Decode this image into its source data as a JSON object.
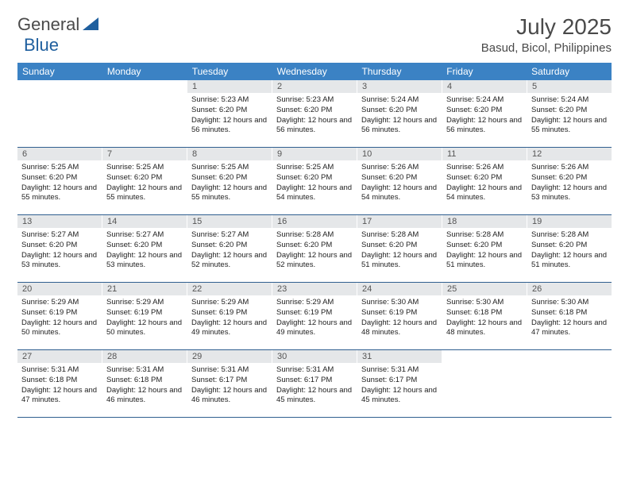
{
  "brand": {
    "part1": "General",
    "part2": "Blue"
  },
  "colors": {
    "header_bg": "#3b82c4",
    "header_text": "#ffffff",
    "daynum_bg": "#e5e7e9",
    "week_divider": "#2f5f8f",
    "text": "#4a4a4a",
    "logo_triangle": "#1f5f9e"
  },
  "title": "July 2025",
  "location": "Basud, Bicol, Philippines",
  "weekdays": [
    "Sunday",
    "Monday",
    "Tuesday",
    "Wednesday",
    "Thursday",
    "Friday",
    "Saturday"
  ],
  "table": {
    "columns": 7,
    "rows": 5
  },
  "weeks": [
    [
      {
        "empty": true
      },
      {
        "empty": true
      },
      {
        "day": "1",
        "sunrise": "5:23 AM",
        "sunset": "6:20 PM",
        "daylight": "12 hours and 56 minutes."
      },
      {
        "day": "2",
        "sunrise": "5:23 AM",
        "sunset": "6:20 PM",
        "daylight": "12 hours and 56 minutes."
      },
      {
        "day": "3",
        "sunrise": "5:24 AM",
        "sunset": "6:20 PM",
        "daylight": "12 hours and 56 minutes."
      },
      {
        "day": "4",
        "sunrise": "5:24 AM",
        "sunset": "6:20 PM",
        "daylight": "12 hours and 56 minutes."
      },
      {
        "day": "5",
        "sunrise": "5:24 AM",
        "sunset": "6:20 PM",
        "daylight": "12 hours and 55 minutes."
      }
    ],
    [
      {
        "day": "6",
        "sunrise": "5:25 AM",
        "sunset": "6:20 PM",
        "daylight": "12 hours and 55 minutes."
      },
      {
        "day": "7",
        "sunrise": "5:25 AM",
        "sunset": "6:20 PM",
        "daylight": "12 hours and 55 minutes."
      },
      {
        "day": "8",
        "sunrise": "5:25 AM",
        "sunset": "6:20 PM",
        "daylight": "12 hours and 55 minutes."
      },
      {
        "day": "9",
        "sunrise": "5:25 AM",
        "sunset": "6:20 PM",
        "daylight": "12 hours and 54 minutes."
      },
      {
        "day": "10",
        "sunrise": "5:26 AM",
        "sunset": "6:20 PM",
        "daylight": "12 hours and 54 minutes."
      },
      {
        "day": "11",
        "sunrise": "5:26 AM",
        "sunset": "6:20 PM",
        "daylight": "12 hours and 54 minutes."
      },
      {
        "day": "12",
        "sunrise": "5:26 AM",
        "sunset": "6:20 PM",
        "daylight": "12 hours and 53 minutes."
      }
    ],
    [
      {
        "day": "13",
        "sunrise": "5:27 AM",
        "sunset": "6:20 PM",
        "daylight": "12 hours and 53 minutes."
      },
      {
        "day": "14",
        "sunrise": "5:27 AM",
        "sunset": "6:20 PM",
        "daylight": "12 hours and 53 minutes."
      },
      {
        "day": "15",
        "sunrise": "5:27 AM",
        "sunset": "6:20 PM",
        "daylight": "12 hours and 52 minutes."
      },
      {
        "day": "16",
        "sunrise": "5:28 AM",
        "sunset": "6:20 PM",
        "daylight": "12 hours and 52 minutes."
      },
      {
        "day": "17",
        "sunrise": "5:28 AM",
        "sunset": "6:20 PM",
        "daylight": "12 hours and 51 minutes."
      },
      {
        "day": "18",
        "sunrise": "5:28 AM",
        "sunset": "6:20 PM",
        "daylight": "12 hours and 51 minutes."
      },
      {
        "day": "19",
        "sunrise": "5:28 AM",
        "sunset": "6:20 PM",
        "daylight": "12 hours and 51 minutes."
      }
    ],
    [
      {
        "day": "20",
        "sunrise": "5:29 AM",
        "sunset": "6:19 PM",
        "daylight": "12 hours and 50 minutes."
      },
      {
        "day": "21",
        "sunrise": "5:29 AM",
        "sunset": "6:19 PM",
        "daylight": "12 hours and 50 minutes."
      },
      {
        "day": "22",
        "sunrise": "5:29 AM",
        "sunset": "6:19 PM",
        "daylight": "12 hours and 49 minutes."
      },
      {
        "day": "23",
        "sunrise": "5:29 AM",
        "sunset": "6:19 PM",
        "daylight": "12 hours and 49 minutes."
      },
      {
        "day": "24",
        "sunrise": "5:30 AM",
        "sunset": "6:19 PM",
        "daylight": "12 hours and 48 minutes."
      },
      {
        "day": "25",
        "sunrise": "5:30 AM",
        "sunset": "6:18 PM",
        "daylight": "12 hours and 48 minutes."
      },
      {
        "day": "26",
        "sunrise": "5:30 AM",
        "sunset": "6:18 PM",
        "daylight": "12 hours and 47 minutes."
      }
    ],
    [
      {
        "day": "27",
        "sunrise": "5:31 AM",
        "sunset": "6:18 PM",
        "daylight": "12 hours and 47 minutes."
      },
      {
        "day": "28",
        "sunrise": "5:31 AM",
        "sunset": "6:18 PM",
        "daylight": "12 hours and 46 minutes."
      },
      {
        "day": "29",
        "sunrise": "5:31 AM",
        "sunset": "6:17 PM",
        "daylight": "12 hours and 46 minutes."
      },
      {
        "day": "30",
        "sunrise": "5:31 AM",
        "sunset": "6:17 PM",
        "daylight": "12 hours and 45 minutes."
      },
      {
        "day": "31",
        "sunrise": "5:31 AM",
        "sunset": "6:17 PM",
        "daylight": "12 hours and 45 minutes."
      },
      {
        "empty": true
      },
      {
        "empty": true
      }
    ]
  ],
  "labels": {
    "sunrise_prefix": "Sunrise: ",
    "sunset_prefix": "Sunset: ",
    "daylight_prefix": "Daylight: "
  }
}
